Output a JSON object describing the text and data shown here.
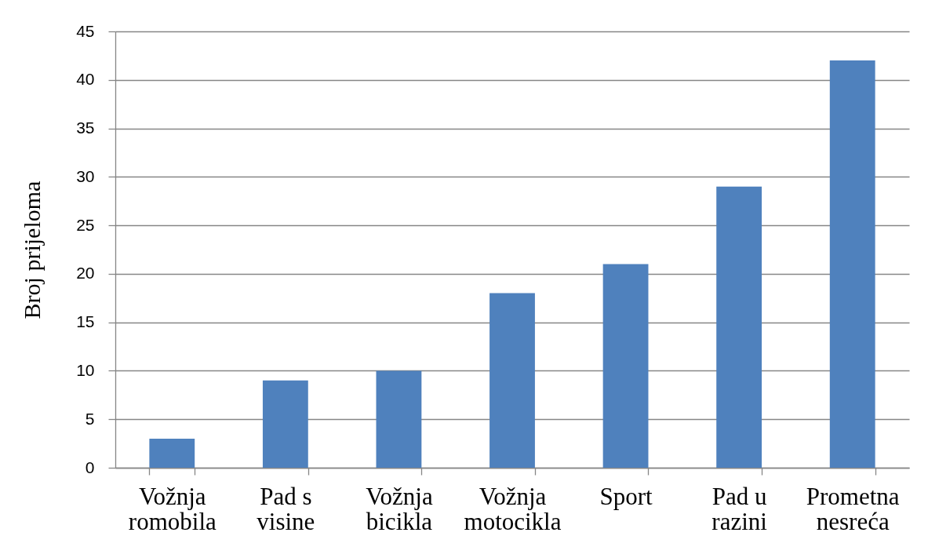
{
  "chart_data": {
    "type": "bar",
    "ylabel": "Broj prijeloma",
    "categories": [
      "Vožnja romobila",
      "Pad s visine",
      "Vožnja bicikla",
      "Vožnja motocikla",
      "Sport",
      "Pad u razini",
      "Prometna nesreća"
    ],
    "values": [
      3,
      9,
      10,
      18,
      21,
      29,
      42
    ],
    "color": "#4f81bd",
    "ylim": [
      0,
      45
    ],
    "yticks": [
      0,
      5,
      10,
      15,
      20,
      25,
      30,
      35,
      40,
      45
    ],
    "grid": "y"
  }
}
